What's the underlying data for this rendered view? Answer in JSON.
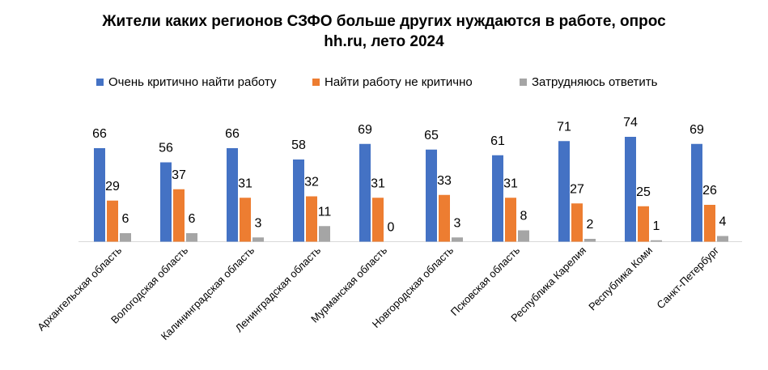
{
  "chart_data": {
    "type": "bar",
    "title_lines": [
      "Жители каких регионов СЗФО больше других нуждаются в работе, опрос",
      "hh.ru, лето 2024"
    ],
    "categories": [
      "Архангельская область",
      "Вологодская область",
      "Калининградская область",
      "Ленинградская область",
      "Мурманская область",
      "Новгородская область",
      "Псковская область",
      "Республика Карелия",
      "Республика Коми",
      "Санкт-Петербург"
    ],
    "series": [
      {
        "name": "Очень критично найти работу",
        "color": "#4472C4",
        "values": [
          66,
          56,
          66,
          58,
          69,
          65,
          61,
          71,
          74,
          69
        ]
      },
      {
        "name": "Найти работу не критично",
        "color": "#ED7D31",
        "values": [
          29,
          37,
          31,
          32,
          31,
          33,
          31,
          27,
          25,
          26
        ]
      },
      {
        "name": "Затрудняюсь ответить",
        "color": "#A5A5A5",
        "values": [
          6,
          6,
          3,
          11,
          0,
          3,
          8,
          2,
          1,
          4
        ]
      }
    ],
    "ylim": [
      0,
      100
    ],
    "legend_position": "top",
    "grid": false,
    "data_labels": true
  }
}
